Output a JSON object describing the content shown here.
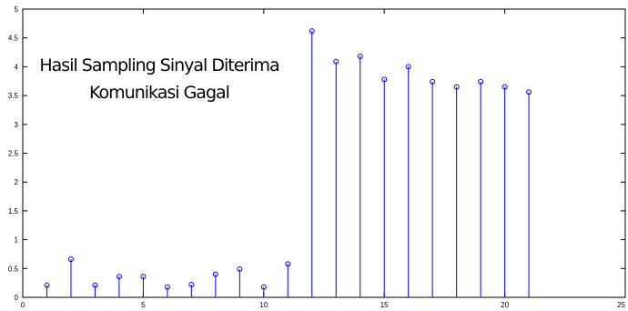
{
  "chart_data": {
    "type": "stem",
    "annotation": [
      "Hasil Sampling Sinyal Diterima",
      "Komunikasi Gagal"
    ],
    "x": [
      1,
      2,
      3,
      4,
      5,
      6,
      7,
      8,
      9,
      10,
      11,
      12,
      13,
      14,
      15,
      16,
      17,
      18,
      19,
      20,
      21
    ],
    "values": [
      0.21,
      0.66,
      0.21,
      0.36,
      0.36,
      0.18,
      0.22,
      0.4,
      0.49,
      0.18,
      0.58,
      4.62,
      4.09,
      4.18,
      3.78,
      4.0,
      3.74,
      3.65,
      3.74,
      3.65,
      3.56
    ],
    "color": "#0000ff",
    "xlim": [
      0,
      25
    ],
    "xticks": [
      0,
      5,
      10,
      15,
      20,
      25
    ],
    "ylim": [
      0,
      5
    ],
    "yticks": [
      0,
      0.5,
      1,
      1.5,
      2,
      2.5,
      3,
      3.5,
      4,
      4.5,
      5
    ],
    "grid": false
  }
}
